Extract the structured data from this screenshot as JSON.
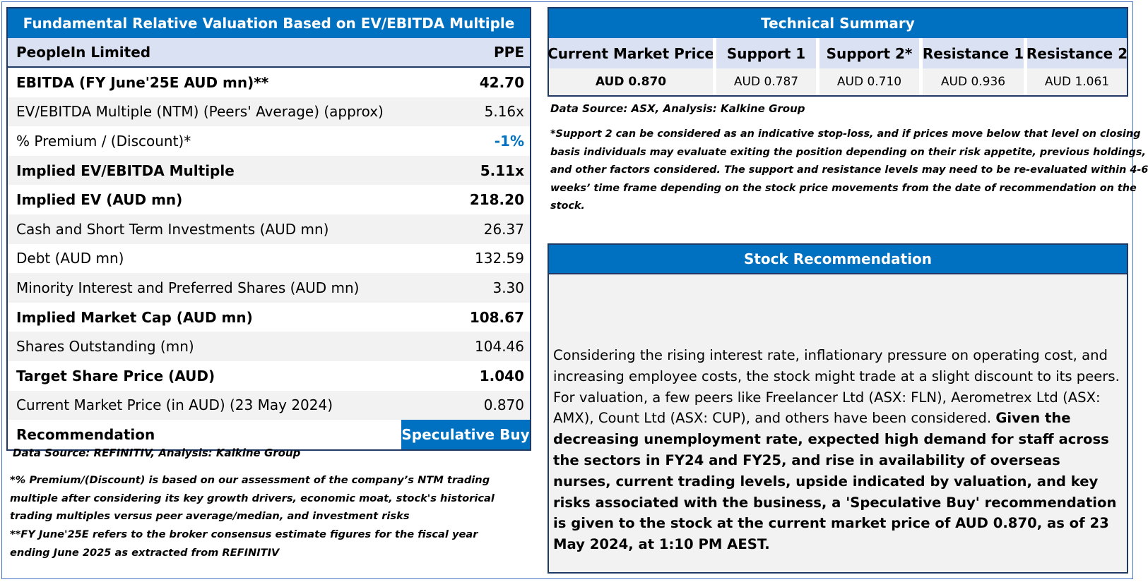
{
  "valuation": {
    "title": "Fundamental Relative Valuation Based on EV/EBITDA Multiple",
    "company": "PeopleIn Limited",
    "ticker": "PPE",
    "rows": [
      {
        "label": "EBITDA (FY June'25E AUD mn)**",
        "value": "42.70"
      },
      {
        "label": "EV/EBITDA Multiple (NTM)  (Peers' Average) (approx)",
        "value": "5.16x"
      },
      {
        "label": "% Premium / (Discount)*",
        "value": "-1%"
      },
      {
        "label": "Implied EV/EBITDA Multiple",
        "value": "5.11x"
      },
      {
        "label": "Implied EV (AUD mn)",
        "value": "218.20"
      },
      {
        "label": "Cash and Short Term Investments (AUD mn)",
        "value": "26.37"
      },
      {
        "label": "Debt (AUD mn)",
        "value": "132.59"
      },
      {
        "label": "Minority Interest and Preferred Shares (AUD mn)",
        "value": "3.30"
      },
      {
        "label": "Implied Market Cap (AUD mn)",
        "value": "108.67"
      },
      {
        "label": "Shares Outstanding (mn)",
        "value": "104.46"
      },
      {
        "label": "Target Share Price (AUD)",
        "value": "1.040"
      },
      {
        "label": "Current Market Price (in AUD) (23 May 2024)",
        "value": "0.870"
      },
      {
        "label": "Recommendation",
        "value": "Speculative Buy"
      }
    ],
    "source": "Data Source: REFINITIV, Analysis: Kalkine Group",
    "note1": "*% Premium/(Discount) is based on our assessment of the company’s NTM trading multiple after considering its key growth drivers, economic moat, stock's historical trading multiples versus peer average/median, and investment risks",
    "note2": "**FY June'25E refers to the broker consensus estimate figures for the fiscal year ending June 2025  as extracted from REFINITIV"
  },
  "technical": {
    "title": "Technical Summary",
    "columns": [
      {
        "header": "Current Market Price",
        "value": "AUD 0.870"
      },
      {
        "header": "Support 1",
        "value": "AUD 0.787"
      },
      {
        "header": "Support 2*",
        "value": "AUD 0.710"
      },
      {
        "header": "Resistance 1",
        "value": "AUD 0.936"
      },
      {
        "header": "Resistance 2",
        "value": "AUD 1.061"
      }
    ],
    "source": "Data Source: ASX, Analysis: Kalkine Group",
    "note_lines": [
      "*Support 2 can be considered as an indicative stop-loss, and if prices move below that level on closing",
      "basis individuals may evaluate exiting the position depending on their risk appetite, previous holdings,",
      "and other factors considered. The support and resistance levels may need to be re-evaluated within 4-6",
      "weeks’ time frame depending on the stock price movements from the date of recommendation on the",
      "stock."
    ]
  },
  "recommendation": {
    "title": "Stock Recommendation",
    "text_normal": "Considering the rising interest rate, inflationary pressure on operating cost, and increasing employee costs, the stock might trade at a slight discount to its peers. For valuation, a few peers like Freelancer Ltd (ASX: FLN), Aerometrex Ltd (ASX: AMX), Count Ltd (ASX: CUP), and others have been considered.",
    "text_bold": "Given the decreasing unemployment rate, expected high demand for staff across the sectors in FY24 and FY25, and rise in availability of overseas nurses, current trading levels, upside indicated by valuation, and key risks associated with the business, a 'Speculative Buy' recommendation is given to the stock at the current market price of AUD 0.870, as of 23 May 2024, at 1:10 PM AEST."
  }
}
